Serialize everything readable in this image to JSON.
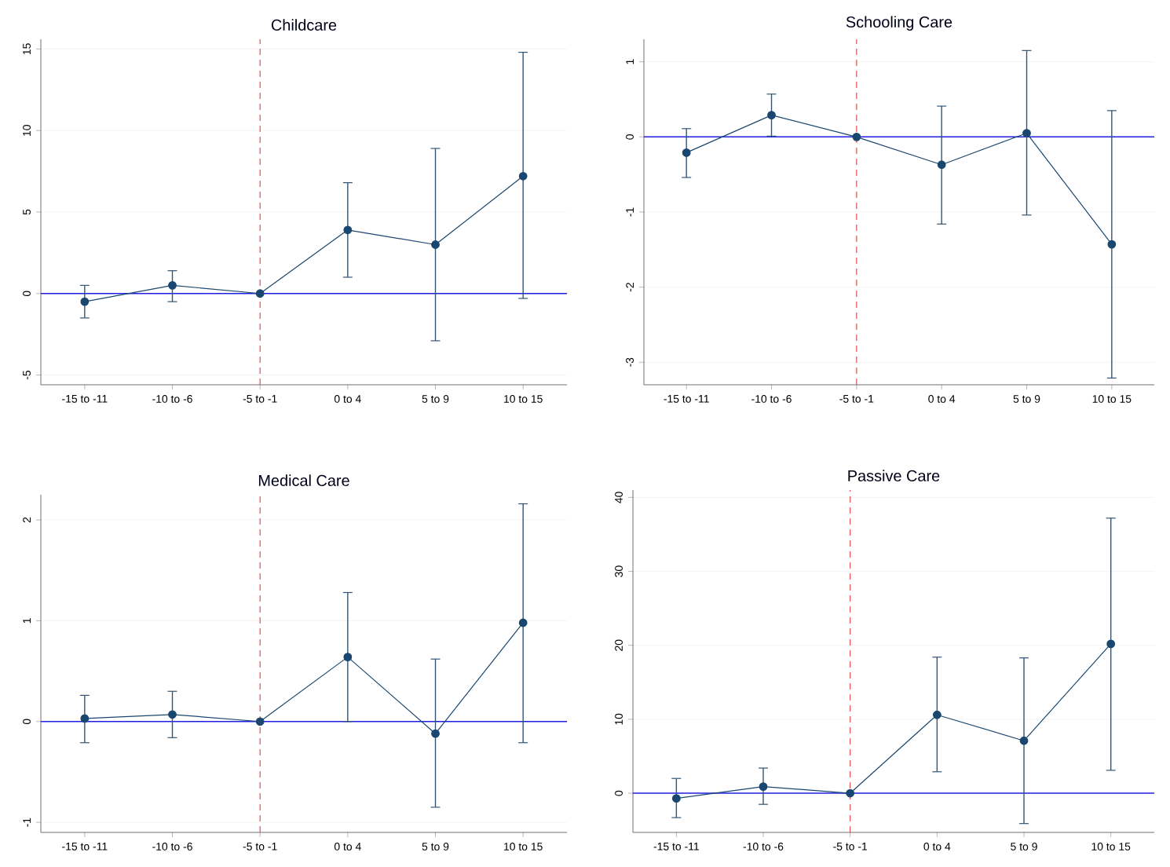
{
  "chart_data": [
    {
      "type": "line",
      "title": "Childcare",
      "categories": [
        "-15 to -11",
        "-10 to -6",
        "-5 to -1",
        "0 to 4",
        "5 to 9",
        "10 to 15"
      ],
      "values": [
        -0.5,
        0.5,
        0,
        3.9,
        3.0,
        7.2
      ],
      "errors": [
        [
          -1.5,
          0.5
        ],
        [
          -0.5,
          1.4
        ],
        null,
        [
          1.0,
          6.8
        ],
        [
          -2.9,
          8.9
        ],
        [
          -0.3,
          14.8
        ]
      ],
      "color": "#1a476f",
      "marker": "circle",
      "ylim": [
        -5.6,
        15.6
      ],
      "yticks": [
        -5,
        0,
        5,
        10,
        15
      ],
      "grid": "y",
      "ref_lines": [
        {
          "axis": "y",
          "value": 0,
          "color": "#2020e0",
          "line_style": "solid"
        },
        {
          "axis": "x",
          "value": "-5 to -1",
          "color": "#e05050",
          "line_style": "dashed"
        }
      ]
    },
    {
      "type": "line",
      "title": "Schooling Care",
      "categories": [
        "-15 to -11",
        "-10 to -6",
        "-5 to -1",
        "0 to 4",
        "5 to 9",
        "10 to 15"
      ],
      "values": [
        -0.21,
        0.29,
        0,
        -0.37,
        0.05,
        -1.43
      ],
      "errors": [
        [
          -0.54,
          0.11
        ],
        [
          0.01,
          0.57
        ],
        null,
        [
          -1.16,
          0.41
        ],
        [
          -1.04,
          1.15
        ],
        [
          -3.21,
          0.35
        ]
      ],
      "color": "#1a476f",
      "marker": "circle",
      "ylim": [
        -3.3,
        1.3
      ],
      "yticks": [
        -3,
        -2,
        -1,
        0,
        1
      ],
      "grid": "y",
      "ref_lines": [
        {
          "axis": "y",
          "value": 0,
          "color": "#2020e0",
          "line_style": "solid"
        },
        {
          "axis": "x",
          "value": "-5 to -1",
          "color": "#e05050",
          "line_style": "dashed"
        }
      ]
    },
    {
      "type": "line",
      "title": "Medical Care",
      "categories": [
        "-15 to -11",
        "-10 to -6",
        "-5 to -1",
        "0 to 4",
        "5 to 9",
        "10 to 15"
      ],
      "values": [
        0.03,
        0.07,
        0,
        0.64,
        -0.12,
        0.98
      ],
      "errors": [
        [
          -0.21,
          0.26
        ],
        [
          -0.16,
          0.3
        ],
        null,
        [
          0.0,
          1.28
        ],
        [
          -0.85,
          0.62
        ],
        [
          -0.21,
          2.16
        ]
      ],
      "color": "#1a476f",
      "marker": "circle",
      "ylim": [
        -1.1,
        2.25
      ],
      "yticks": [
        -1,
        0,
        1,
        2
      ],
      "grid": "y",
      "ref_lines": [
        {
          "axis": "y",
          "value": 0,
          "color": "#2020e0",
          "line_style": "solid"
        },
        {
          "axis": "x",
          "value": "-5 to -1",
          "color": "#e05050",
          "line_style": "dashed"
        }
      ]
    },
    {
      "type": "line",
      "title": "Passive Care",
      "categories": [
        "-15 to -11",
        "-10 to -6",
        "-5 to -1",
        "0 to 4",
        "5 to 9",
        "10 to 15"
      ],
      "values": [
        -0.7,
        0.9,
        0,
        10.6,
        7.1,
        20.2
      ],
      "errors": [
        [
          -3.3,
          2.0
        ],
        [
          -1.5,
          3.4
        ],
        null,
        [
          2.9,
          18.4
        ],
        [
          -4.1,
          18.3
        ],
        [
          3.1,
          37.2
        ]
      ],
      "color": "#1a476f",
      "marker": "circle",
      "ylim": [
        -5.3,
        41
      ],
      "yticks": [
        0,
        10,
        20,
        30,
        40
      ],
      "grid": "y",
      "ref_lines": [
        {
          "axis": "y",
          "value": 0,
          "color": "#2020e0",
          "line_style": "solid"
        },
        {
          "axis": "x",
          "value": "-5 to -1",
          "color": "#e05050",
          "line_style": "dashed"
        }
      ]
    }
  ]
}
